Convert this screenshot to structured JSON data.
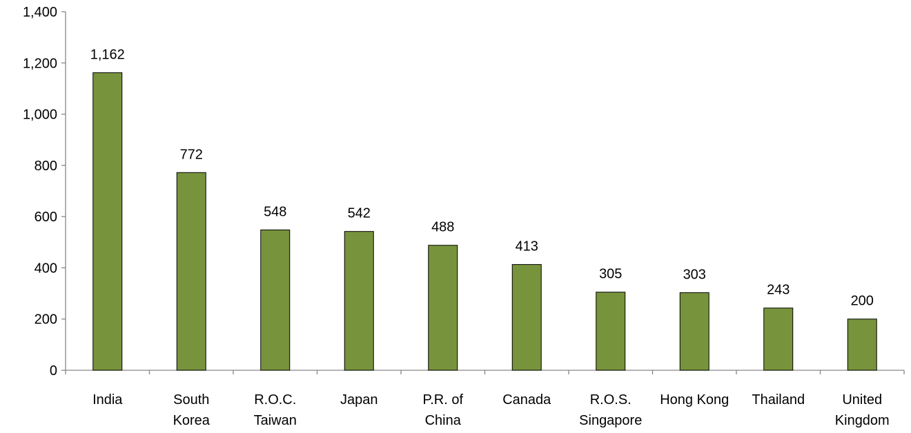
{
  "chart_data": {
    "type": "bar",
    "title": "",
    "xlabel": "",
    "ylabel": "",
    "categories": [
      [
        "India"
      ],
      [
        "South",
        "Korea"
      ],
      [
        "R.O.C.",
        "Taiwan"
      ],
      [
        "Japan"
      ],
      [
        "P.R. of",
        "China"
      ],
      [
        "Canada"
      ],
      [
        "R.O.S.",
        "Singapore"
      ],
      [
        "Hong Kong"
      ],
      [
        "Thailand"
      ],
      [
        "United",
        "Kingdom"
      ]
    ],
    "values": [
      1162,
      772,
      548,
      542,
      488,
      413,
      305,
      303,
      243,
      200
    ],
    "value_labels": [
      "1,162",
      "772",
      "548",
      "542",
      "488",
      "413",
      "305",
      "303",
      "243",
      "200"
    ],
    "ylim": [
      0,
      1400
    ],
    "yticks": [
      0,
      200,
      400,
      600,
      800,
      1000,
      1200,
      1400
    ],
    "ytick_labels": [
      "0",
      "200",
      "400",
      "600",
      "800",
      "1,000",
      "1,200",
      "1,400"
    ],
    "grid": false,
    "legend": "none",
    "bar_color": "#77933c",
    "bar_edge_color": "#000000"
  }
}
